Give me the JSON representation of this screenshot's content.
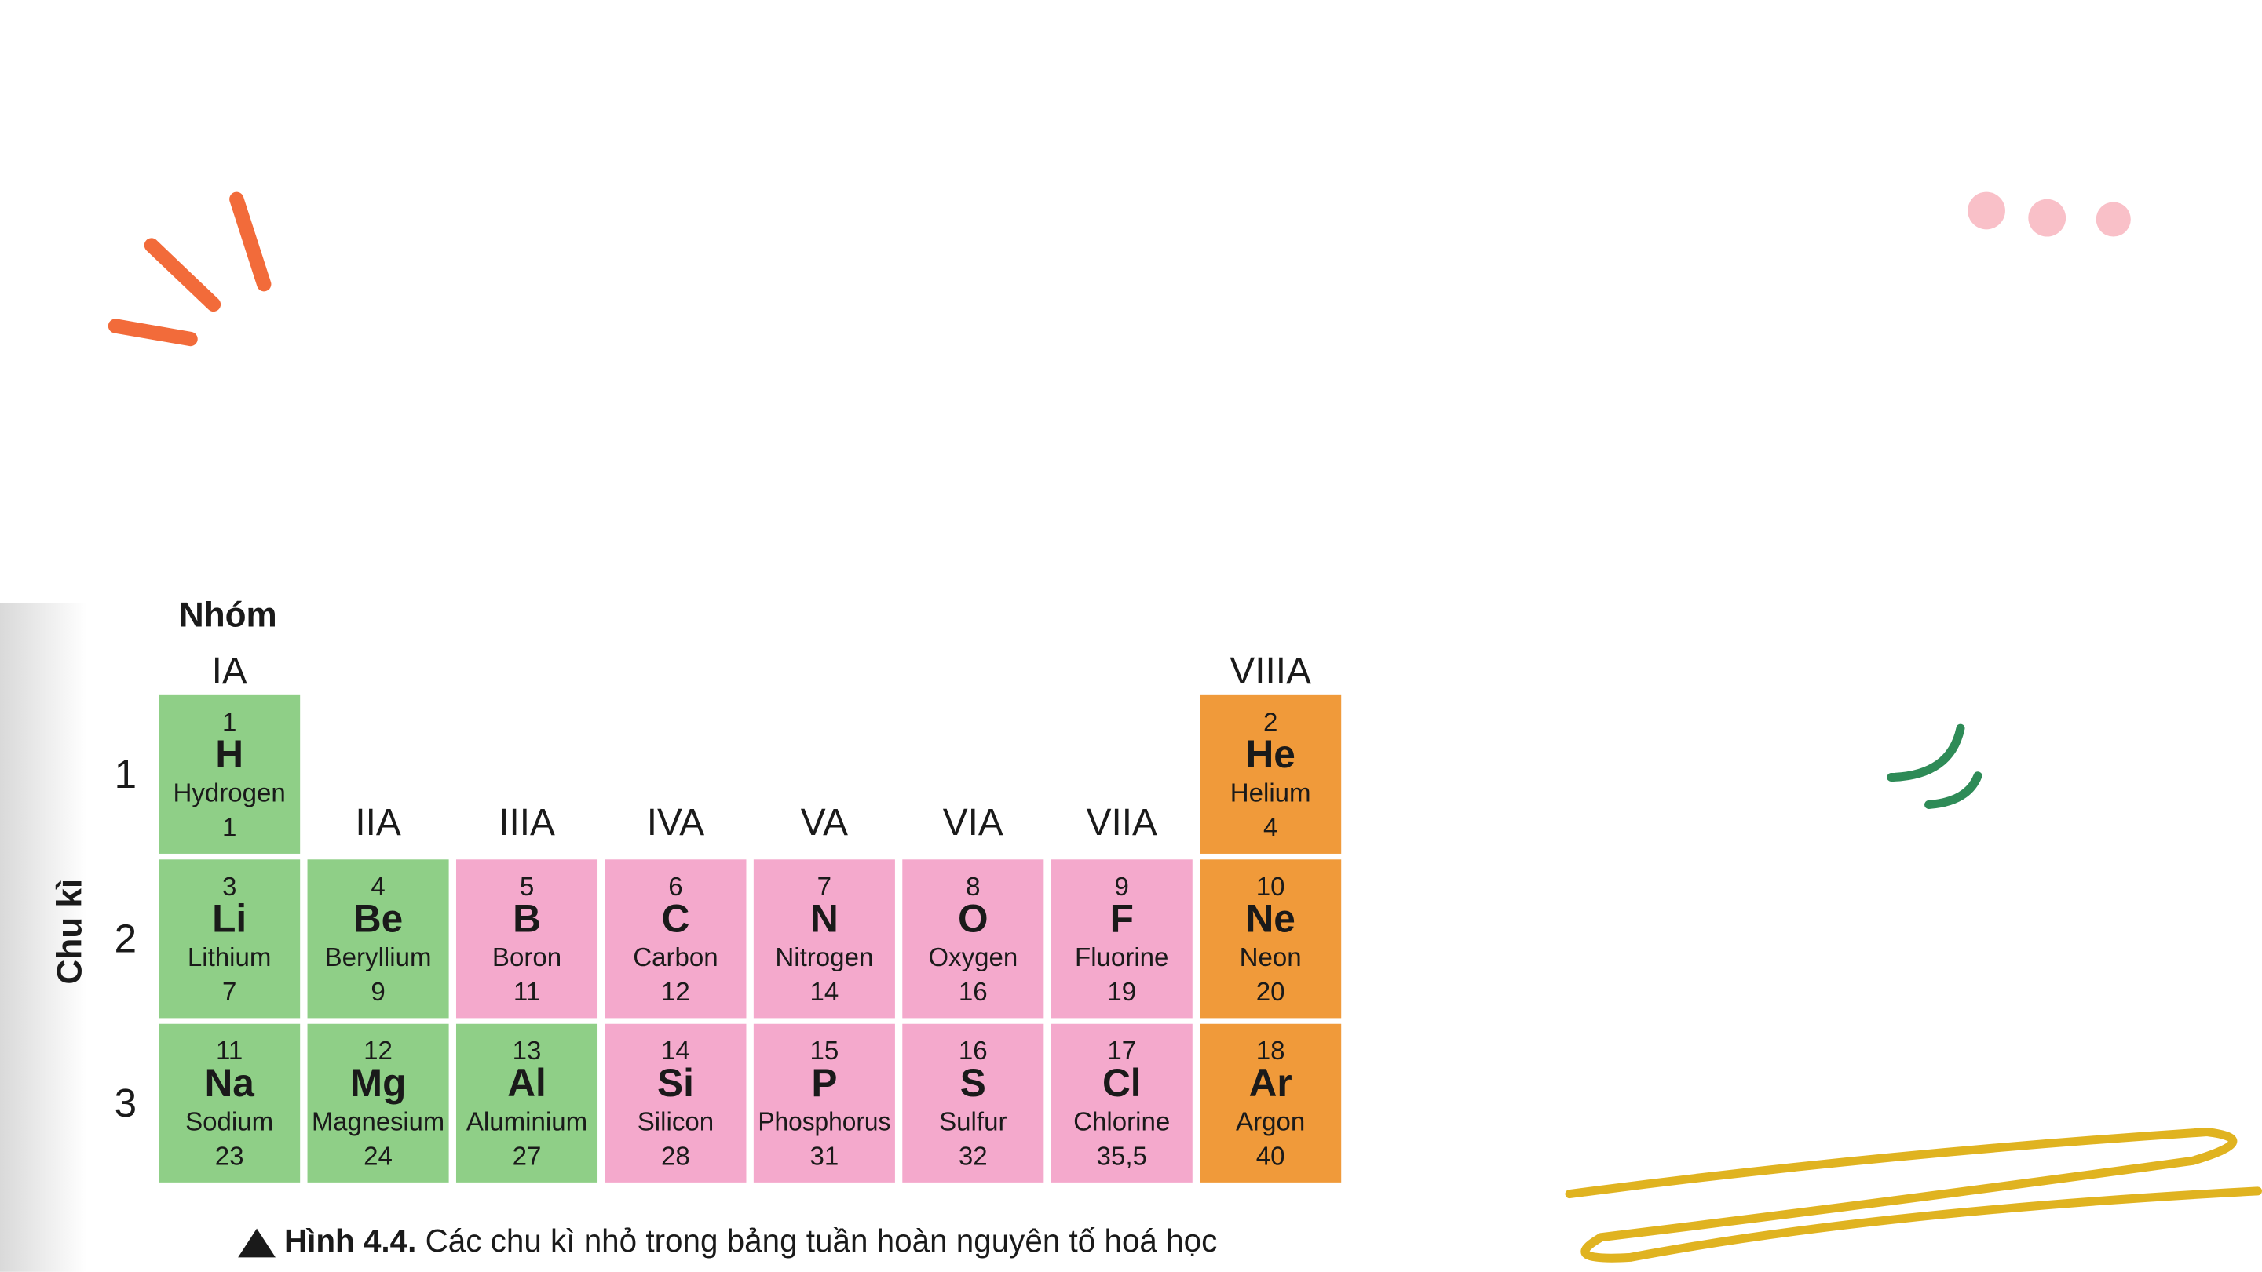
{
  "figure": {
    "heading_group": "Nhóm",
    "heading_period": "Chu kì",
    "groups": [
      "IA",
      "IIA",
      "IIIA",
      "IVA",
      "VA",
      "VIA",
      "VIIA",
      "VIIIA"
    ],
    "periods": [
      {
        "label": 1,
        "cells": [
          {
            "number": 1,
            "symbol": "H",
            "name": "Hydrogen",
            "mass": "1",
            "color": "#8fcf87"
          },
          null,
          null,
          null,
          null,
          null,
          null,
          {
            "number": 2,
            "symbol": "He",
            "name": "Helium",
            "mass": "4",
            "color": "#f09a3a"
          }
        ]
      },
      {
        "label": 2,
        "cells": [
          {
            "number": 3,
            "symbol": "Li",
            "name": "Lithium",
            "mass": "7",
            "color": "#8fcf87"
          },
          {
            "number": 4,
            "symbol": "Be",
            "name": "Beryllium",
            "mass": "9",
            "color": "#8fcf87"
          },
          {
            "number": 5,
            "symbol": "B",
            "name": "Boron",
            "mass": "11",
            "color": "#f4a9cc"
          },
          {
            "number": 6,
            "symbol": "C",
            "name": "Carbon",
            "mass": "12",
            "color": "#f4a9cc"
          },
          {
            "number": 7,
            "symbol": "N",
            "name": "Nitrogen",
            "mass": "14",
            "color": "#f4a9cc"
          },
          {
            "number": 8,
            "symbol": "O",
            "name": "Oxygen",
            "mass": "16",
            "color": "#f4a9cc"
          },
          {
            "number": 9,
            "symbol": "F",
            "name": "Fluorine",
            "mass": "19",
            "color": "#f4a9cc"
          },
          {
            "number": 10,
            "symbol": "Ne",
            "name": "Neon",
            "mass": "20",
            "color": "#f09a3a"
          }
        ]
      },
      {
        "label": 3,
        "cells": [
          {
            "number": 11,
            "symbol": "Na",
            "name": "Sodium",
            "mass": "23",
            "color": "#8fcf87"
          },
          {
            "number": 12,
            "symbol": "Mg",
            "name": "Magnesium",
            "mass": "24",
            "color": "#8fcf87"
          },
          {
            "number": 13,
            "symbol": "Al",
            "name": "Aluminium",
            "mass": "27",
            "color": "#8fcf87"
          },
          {
            "number": 14,
            "symbol": "Si",
            "name": "Silicon",
            "mass": "28",
            "color": "#f4a9cc"
          },
          {
            "number": 15,
            "symbol": "P",
            "name": "Phosphorus",
            "mass": "31",
            "color": "#f4a9cc"
          },
          {
            "number": 16,
            "symbol": "S",
            "name": "Sulfur",
            "mass": "32",
            "color": "#f4a9cc"
          },
          {
            "number": 17,
            "symbol": "Cl",
            "name": "Chlorine",
            "mass": "35,5",
            "color": "#f4a9cc"
          },
          {
            "number": 18,
            "symbol": "Ar",
            "name": "Argon",
            "mass": "40",
            "color": "#f09a3a"
          }
        ]
      }
    ],
    "caption": {
      "label": "Hình 4.4.",
      "text": "Các chu kì nhỏ trong bảng tuần hoàn nguyên tố hoá học"
    }
  }
}
